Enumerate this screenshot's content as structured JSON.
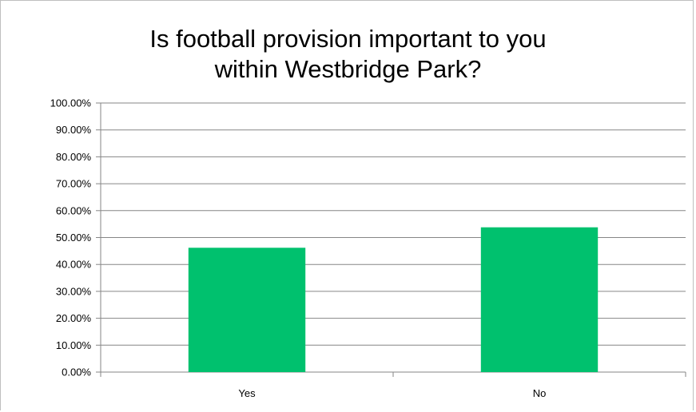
{
  "chart_data": {
    "type": "bar",
    "title": [
      "Is football provision important to you",
      "within Westbridge Park?"
    ],
    "categories": [
      "Yes",
      "No"
    ],
    "values": [
      46.2,
      53.8
    ],
    "ylim": [
      0,
      100
    ],
    "yticks": [
      "0.00%",
      "10.00%",
      "20.00%",
      "30.00%",
      "40.00%",
      "50.00%",
      "60.00%",
      "70.00%",
      "80.00%",
      "90.00%",
      "100.00%"
    ],
    "grid": true,
    "legend": "none",
    "bar_color": "#00c16e",
    "grid_color": "#868686"
  }
}
